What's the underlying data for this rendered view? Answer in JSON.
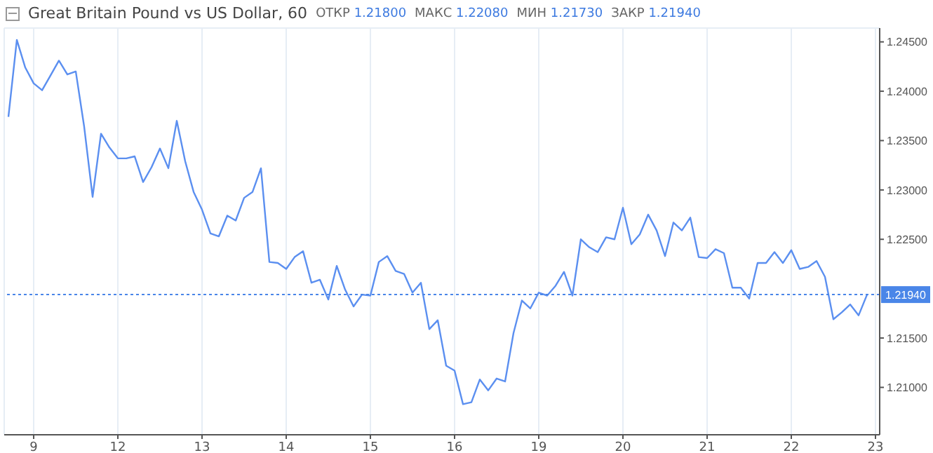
{
  "chart_data": {
    "type": "line",
    "title": "Great Britain Pound vs US Dollar, 60",
    "annotations": [
      "ОТКР 1.21800",
      "МАКС 1.22080",
      "МИН 1.21730",
      "ЗАКР 1.21940"
    ],
    "categories": [
      null,
      null,
      null,
      "9",
      null,
      null,
      null,
      null,
      null,
      null,
      null,
      null,
      null,
      "12",
      null,
      null,
      null,
      null,
      null,
      null,
      null,
      null,
      null,
      "13",
      null,
      null,
      null,
      null,
      null,
      null,
      null,
      null,
      null,
      "14",
      null,
      null,
      null,
      null,
      null,
      null,
      null,
      null,
      null,
      "15",
      null,
      null,
      null,
      null,
      null,
      null,
      null,
      null,
      null,
      "16",
      null,
      null,
      null,
      null,
      null,
      null,
      null,
      null,
      null,
      "19",
      null,
      null,
      null,
      null,
      null,
      null,
      null,
      null,
      null,
      "20",
      null,
      null,
      null,
      null,
      null,
      null,
      null,
      null,
      null,
      "21",
      null,
      null,
      null,
      null,
      null,
      null,
      null,
      null,
      null,
      "22",
      null,
      null,
      null,
      null,
      null,
      null,
      null,
      null,
      null,
      "23"
    ],
    "series": [
      {
        "color": "#5b8ff0",
        "values": [
          1.2374,
          1.2452,
          1.2424,
          1.2408,
          1.2401,
          1.2416,
          1.2431,
          1.2417,
          1.242,
          1.2364,
          1.2293,
          1.2357,
          1.2343,
          1.2332,
          1.2332,
          1.2334,
          1.2308,
          1.2323,
          1.2342,
          1.2322,
          1.237,
          1.2329,
          1.2298,
          1.228,
          1.2256,
          1.2253,
          1.2274,
          1.2269,
          1.2292,
          1.2298,
          1.2322,
          1.2227,
          1.2226,
          1.222,
          1.2232,
          1.2238,
          1.2206,
          1.2209,
          1.2189,
          1.2223,
          1.2199,
          1.2182,
          1.2194,
          1.2193,
          1.2227,
          1.2233,
          1.2218,
          1.2215,
          1.2196,
          1.2206,
          1.2159,
          1.2168,
          1.2122,
          1.2117,
          1.2083,
          1.2085,
          1.2108,
          1.2097,
          1.2109,
          1.2106,
          1.2155,
          1.2188,
          1.218,
          1.2196,
          1.2193,
          1.2203,
          1.2217,
          1.2193,
          1.225,
          1.2242,
          1.2237,
          1.2252,
          1.225,
          1.2282,
          1.2245,
          1.2255,
          1.2275,
          1.2259,
          1.2233,
          1.2267,
          1.2259,
          1.2272,
          1.2232,
          1.2231,
          1.224,
          1.2236,
          1.2201,
          1.2201,
          1.219,
          1.2226,
          1.2226,
          1.2237,
          1.2226,
          1.2239,
          1.222,
          1.2222,
          1.2228,
          1.2212,
          1.2169,
          1.2176,
          1.2184,
          1.2173,
          1.2194,
          null
        ]
      }
    ],
    "ylim": [
      1.2052,
      1.2464
    ],
    "yticks": [
      {
        "value": 1.21,
        "label": "1.21000"
      },
      {
        "value": 1.215,
        "label": "1.21500"
      },
      {
        "value": 1.225,
        "label": "1.22500"
      },
      {
        "value": 1.23,
        "label": "1.23000"
      },
      {
        "value": 1.235,
        "label": "1.23500"
      },
      {
        "value": 1.24,
        "label": "1.24000"
      },
      {
        "value": 1.245,
        "label": "1.24500"
      }
    ],
    "ref_lines": [
      {
        "axis": "y",
        "value": 1.2194,
        "label": "1.21940",
        "color": "#4a86e8",
        "line_style": "dotted"
      }
    ],
    "grid": true,
    "marker": "none",
    "line_style": "solid"
  }
}
